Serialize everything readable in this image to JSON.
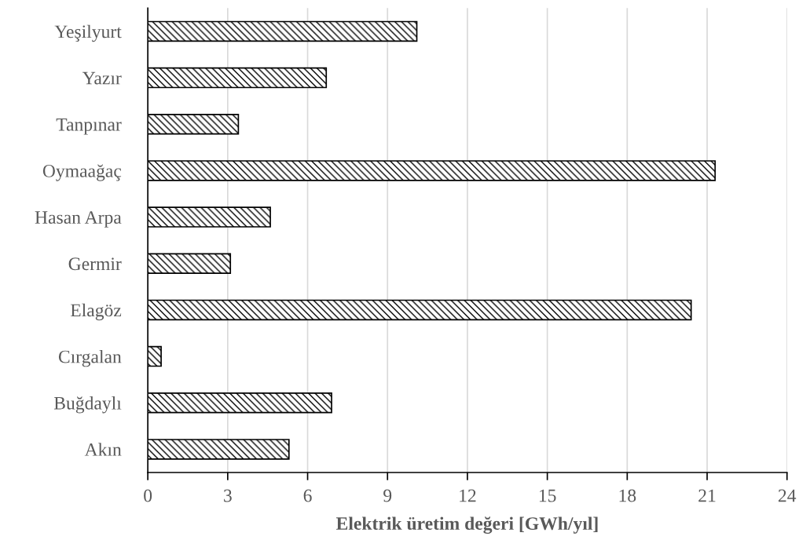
{
  "chart_data": {
    "type": "bar",
    "orientation": "horizontal",
    "xlabel": "Elektrik üretim değeri [GWh/yıl]",
    "categories": [
      "Yeşilyurt",
      "Yazır",
      "Tanpınar",
      "Oymaağaç",
      "Hasan Arpa",
      "Germir",
      "Elagöz",
      "Cırgalan",
      "Buğdaylı",
      "Akın"
    ],
    "values": [
      10.1,
      6.7,
      3.4,
      21.3,
      4.6,
      3.1,
      20.4,
      0.5,
      6.9,
      5.3
    ],
    "color": "#000000",
    "xlim": [
      0,
      24
    ],
    "xticks": [
      0,
      3,
      6,
      9,
      12,
      15,
      18,
      21,
      24
    ],
    "grid": "x"
  }
}
